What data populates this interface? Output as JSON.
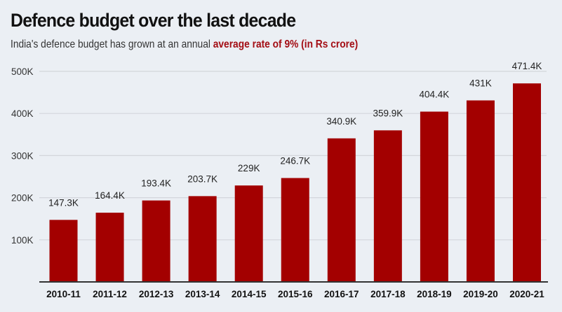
{
  "header": {
    "title": "Defence budget over the last decade",
    "subtitle_plain": "India's defence budget has grown at an annual ",
    "subtitle_highlight": "average rate of 9% (in Rs crore)"
  },
  "colors": {
    "bar": "#a30000",
    "highlight": "#a30d14",
    "grid": "#d3d6db",
    "axis": "#333333"
  },
  "chart_data": {
    "type": "bar",
    "title": "Defence budget over the last decade",
    "subtitle": "India's defence budget has grown at an annual average rate of 9% (in Rs crore)",
    "xlabel": "",
    "ylabel": "",
    "categories": [
      "2010-11",
      "2011-12",
      "2012-13",
      "2013-14",
      "2014-15",
      "2015-16",
      "2016-17",
      "2017-18",
      "2018-19",
      "2019-20",
      "2020-21"
    ],
    "values": [
      147300,
      164400,
      193400,
      203700,
      229000,
      246700,
      340900,
      359900,
      404400,
      431000,
      471400
    ],
    "data_labels": [
      "147.3K",
      "164.4K",
      "193.4K",
      "203.7K",
      "229K",
      "246.7K",
      "340.9K",
      "359.9K",
      "404.4K",
      "431K",
      "471.4K"
    ],
    "yticks": [
      100000,
      200000,
      300000,
      400000,
      500000
    ],
    "ytick_labels": [
      "100K",
      "200K",
      "300K",
      "400K",
      "500K"
    ],
    "ylim": [
      0,
      500000
    ],
    "grid": true,
    "legend": "none"
  }
}
